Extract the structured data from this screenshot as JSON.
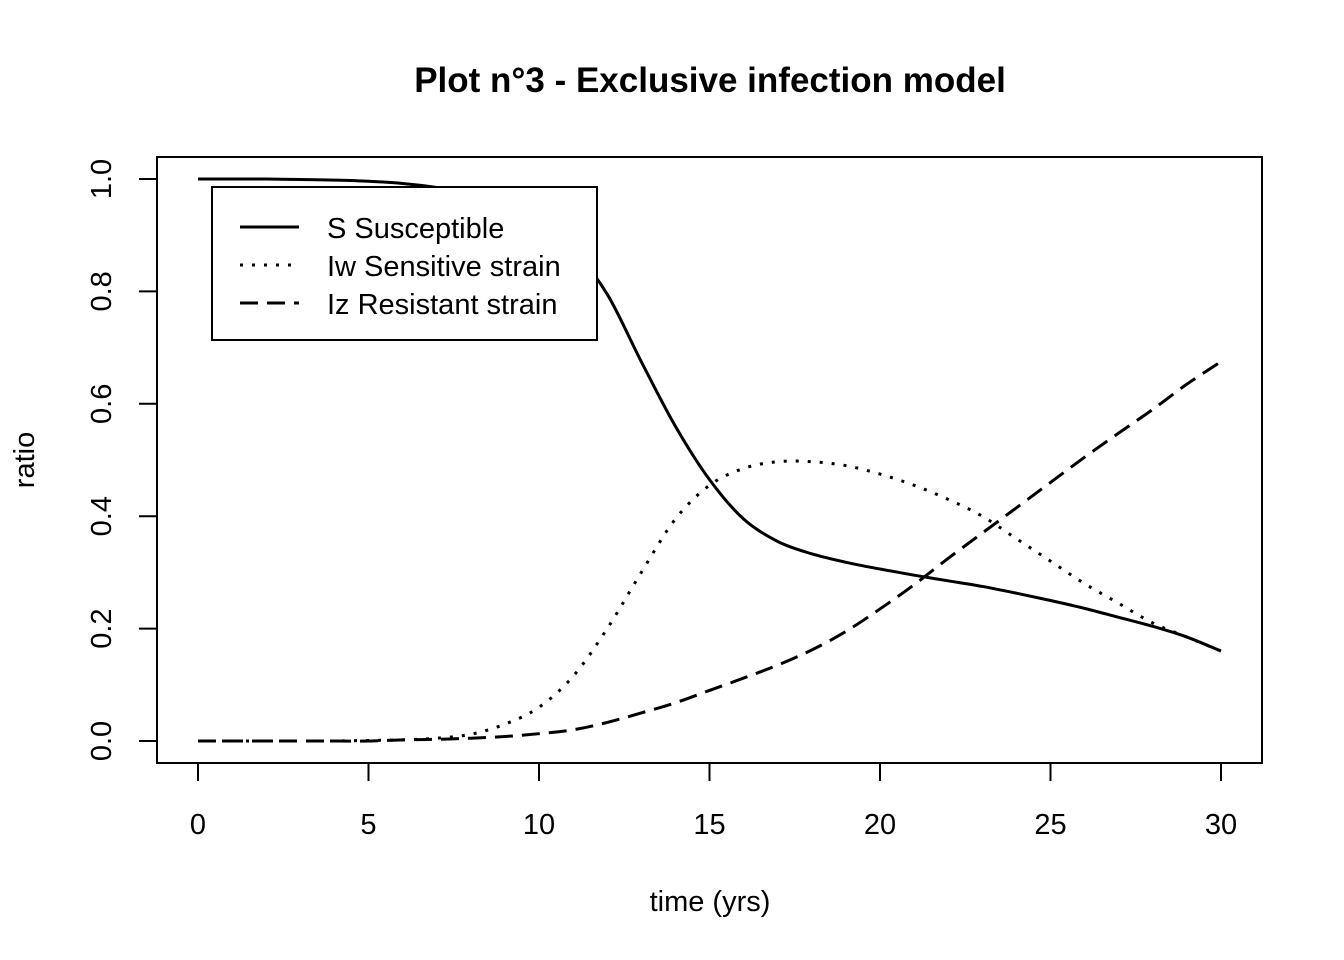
{
  "chart_data": {
    "type": "line",
    "title": "Plot n°3 - Exclusive infection model",
    "xlabel": "time (yrs)",
    "ylabel": "ratio",
    "xlim": [
      0,
      30
    ],
    "ylim": [
      0,
      1
    ],
    "x_ticks": [
      "0",
      "5",
      "10",
      "15",
      "20",
      "25",
      "30"
    ],
    "y_ticks": [
      "0.0",
      "0.2",
      "0.4",
      "0.6",
      "0.8",
      "1.0"
    ],
    "grid": false,
    "legend_position": "top-left",
    "x": [
      0,
      1,
      2,
      3,
      4,
      5,
      6,
      7,
      8,
      9,
      10,
      11,
      12,
      13,
      14,
      15,
      16,
      17,
      18,
      19,
      20,
      21,
      22,
      23,
      24,
      25,
      26,
      27,
      28,
      29,
      30
    ],
    "series": [
      {
        "name": "S Susceptible",
        "style": "solid",
        "values": [
          1.0,
          1.0,
          1.0,
          0.999,
          0.998,
          0.996,
          0.992,
          0.985,
          0.975,
          0.955,
          0.925,
          0.875,
          0.795,
          0.675,
          0.56,
          0.465,
          0.395,
          0.355,
          0.333,
          0.318,
          0.306,
          0.295,
          0.285,
          0.275,
          0.263,
          0.25,
          0.236,
          0.22,
          0.204,
          0.185,
          0.16
        ]
      },
      {
        "name": "Iw Sensitive strain",
        "style": "dotted",
        "values": [
          0.0,
          0.0,
          0.0,
          0.0,
          0.0,
          0.001,
          0.002,
          0.005,
          0.012,
          0.03,
          0.06,
          0.115,
          0.2,
          0.3,
          0.395,
          0.455,
          0.485,
          0.497,
          0.497,
          0.49,
          0.475,
          0.455,
          0.43,
          0.4,
          0.36,
          0.32,
          0.28,
          0.245,
          0.21,
          0.185,
          0.16
        ]
      },
      {
        "name": "Iz Resistant strain",
        "style": "dashed",
        "values": [
          0.0,
          0.0,
          0.0,
          0.0,
          0.0,
          0.0,
          0.002,
          0.003,
          0.005,
          0.008,
          0.013,
          0.02,
          0.033,
          0.05,
          0.068,
          0.09,
          0.112,
          0.135,
          0.162,
          0.195,
          0.235,
          0.278,
          0.325,
          0.37,
          0.415,
          0.46,
          0.505,
          0.548,
          0.59,
          0.635,
          0.675
        ]
      }
    ]
  }
}
